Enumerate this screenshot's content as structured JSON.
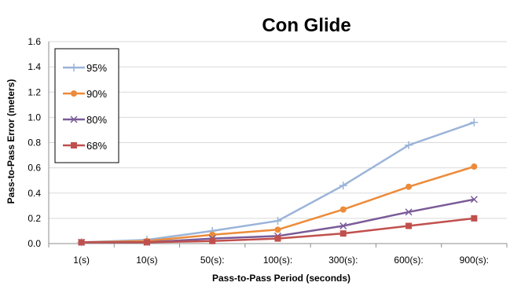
{
  "chart_data": {
    "type": "line",
    "title": "Con Glide",
    "xlabel": "Pass-to-Pass Period (seconds)",
    "ylabel": "Pass-to-Pass Error (meters)",
    "categories": [
      "1(s)",
      "10(s)",
      "50(s):",
      "100(s):",
      "300(s):",
      "600(s):",
      "900(s):"
    ],
    "ylim": [
      0,
      1.6
    ],
    "yticks": [
      "0.0",
      "0.2",
      "0.4",
      "0.6",
      "0.8",
      "1.0",
      "1.2",
      "1.4",
      "1.6"
    ],
    "grid": true,
    "legend_position": "top-left",
    "series": [
      {
        "name": "95%",
        "color": "#9bb4d8",
        "marker": "plus",
        "values": [
          0.01,
          0.03,
          0.1,
          0.18,
          0.46,
          0.78,
          0.96
        ]
      },
      {
        "name": "90%",
        "color": "#ec8b3a",
        "marker": "circle",
        "values": [
          0.01,
          0.02,
          0.07,
          0.11,
          0.27,
          0.45,
          0.61
        ]
      },
      {
        "name": "80%",
        "color": "#7a5b97",
        "marker": "x",
        "values": [
          0.01,
          0.01,
          0.04,
          0.06,
          0.14,
          0.25,
          0.35
        ]
      },
      {
        "name": "68%",
        "color": "#c0504d",
        "marker": "square",
        "values": [
          0.01,
          0.01,
          0.02,
          0.04,
          0.08,
          0.14,
          0.2
        ]
      }
    ]
  }
}
